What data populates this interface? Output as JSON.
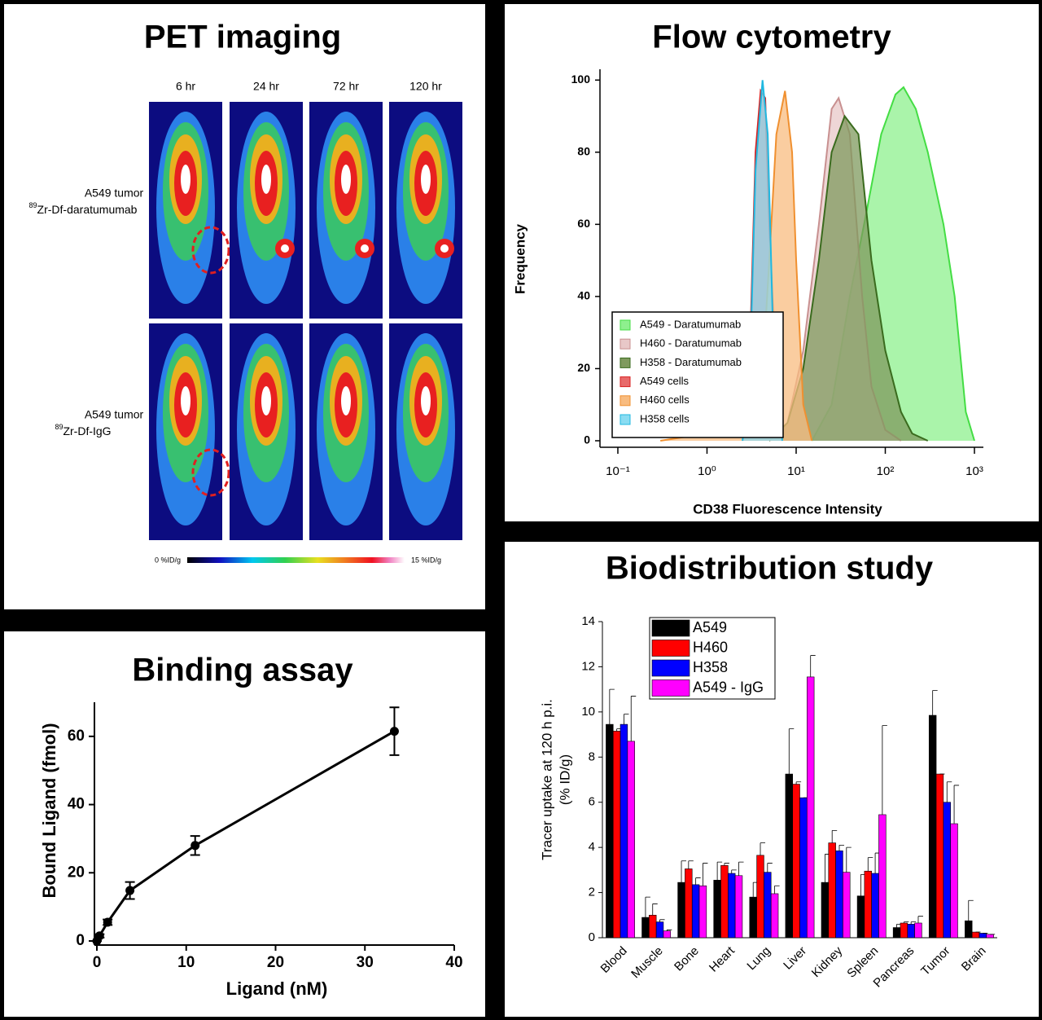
{
  "pet_imaging": {
    "title": "PET imaging",
    "timepoints": [
      "6 hr",
      "24 hr",
      "72 hr",
      "120 hr"
    ],
    "rows": [
      {
        "tumor": "A549 tumor",
        "isotope": "89",
        "tracer": "Zr-Df-daratumumab"
      },
      {
        "tumor": "A549 tumor",
        "isotope": "89",
        "tracer": "Zr-Df-IgG"
      }
    ],
    "colorbar": {
      "min_label": "0 %ID/g",
      "max_label": "15 %ID/g"
    }
  },
  "chart_data": [
    {
      "type": "area",
      "title": "Flow cytometry",
      "x_label": "CD38 Fluorescence Intensity",
      "y_label": "Frequency",
      "xscale": "log",
      "xlim": [
        0.063,
        1260
      ],
      "ylim": [
        0,
        103
      ],
      "xticks": [
        {
          "value": 0.1,
          "label": "10⁻¹"
        },
        {
          "value": 1,
          "label": "10⁰"
        },
        {
          "value": 10,
          "label": "10¹"
        },
        {
          "value": 100,
          "label": "10²"
        },
        {
          "value": 1000,
          "label": "10³"
        }
      ],
      "yticks": [
        0,
        20,
        40,
        60,
        80,
        100
      ],
      "legend": "lower left",
      "series": [
        {
          "name": "A549 - Daratumumab",
          "color": "#44dd44",
          "fill": "#8ef08e",
          "x": [
            15,
            25,
            40,
            60,
            90,
            130,
            160,
            220,
            300,
            450,
            600,
            800,
            1000
          ],
          "values": [
            0,
            10,
            40,
            62,
            85,
            96,
            98,
            92,
            80,
            60,
            40,
            8,
            0
          ]
        },
        {
          "name": "H460 - Daratumumab",
          "color": "#c89090",
          "fill": "#e8c8c8",
          "x": [
            5,
            8,
            12,
            18,
            25,
            30,
            40,
            55,
            70,
            100,
            150
          ],
          "values": [
            0,
            5,
            25,
            60,
            92,
            95,
            85,
            40,
            15,
            3,
            0
          ]
        },
        {
          "name": "H358 - Daratumumab",
          "color": "#3a6b1e",
          "fill": "#7f9a5e",
          "x": [
            5,
            8,
            12,
            18,
            25,
            35,
            50,
            70,
            100,
            150,
            200,
            300
          ],
          "values": [
            0,
            5,
            20,
            50,
            80,
            90,
            85,
            50,
            25,
            8,
            2,
            0
          ]
        },
        {
          "name": "A549 cells",
          "color": "#d82020",
          "fill": "#e86a6a",
          "x": [
            2.5,
            3,
            3.5,
            4,
            4.5,
            5,
            6,
            7
          ],
          "values": [
            0,
            20,
            80,
            97,
            95,
            60,
            15,
            0
          ]
        },
        {
          "name": "H460 cells",
          "color": "#f09030",
          "fill": "#f8bc80",
          "x": [
            0.3,
            1,
            3,
            4,
            5,
            6,
            7.5,
            9,
            10,
            12,
            15
          ],
          "values": [
            0,
            2,
            3,
            10,
            50,
            85,
            97,
            80,
            50,
            10,
            0
          ]
        },
        {
          "name": "H358 cells",
          "color": "#20b8e0",
          "fill": "#8adcf2",
          "x": [
            2.5,
            3,
            3.5,
            4.2,
            4.8,
            5.5,
            7
          ],
          "values": [
            0,
            15,
            75,
            100,
            85,
            30,
            0
          ]
        }
      ]
    },
    {
      "type": "line",
      "title": "Binding assay",
      "x_label": "Ligand (nM)",
      "y_label": "Bound Ligand (fmol)",
      "color": "#000000",
      "x": [
        0,
        0.3,
        1.2,
        3.7,
        11,
        33.3
      ],
      "values": [
        0,
        1.5,
        5.5,
        14.8,
        28,
        61.5
      ],
      "errors": [
        0,
        0.5,
        0.8,
        2.5,
        2.8,
        7
      ],
      "xlim": [
        0,
        40
      ],
      "ylim": [
        0,
        70
      ],
      "xticks": [
        0,
        10,
        20,
        30,
        40
      ],
      "yticks": [
        0,
        20,
        40,
        60
      ]
    },
    {
      "type": "bar",
      "title": "Biodistribution study",
      "y_label": [
        "Tracer uptake at 120 h p.i.",
        "(% ID/g)"
      ],
      "categories": [
        "Blood",
        "Muscle",
        "Bone",
        "Heart",
        "Lung",
        "Liver",
        "Kidney",
        "Spleen",
        "Pancreas",
        "Tumor",
        "Brain"
      ],
      "ylim": [
        0,
        14
      ],
      "yticks": [
        0,
        2,
        4,
        6,
        8,
        10,
        12,
        14
      ],
      "legend": "upper left",
      "series": [
        {
          "name": "A549",
          "color": "#000000",
          "values": [
            9.45,
            0.9,
            2.45,
            2.55,
            1.8,
            7.25,
            2.45,
            1.85,
            0.45,
            9.85,
            0.75
          ],
          "errors": [
            1.55,
            0.9,
            0.95,
            0.8,
            0.65,
            2.0,
            1.25,
            0.95,
            0.15,
            1.1,
            0.9
          ]
        },
        {
          "name": "H460",
          "color": "#ff0000",
          "values": [
            9.15,
            1.0,
            3.05,
            3.2,
            3.65,
            6.8,
            4.2,
            2.95,
            0.65,
            7.25,
            0.25
          ],
          "errors": [
            0.1,
            0.5,
            0.35,
            0.1,
            0.55,
            0.1,
            0.55,
            0.6,
            0.05,
            0,
            0
          ]
        },
        {
          "name": "H358",
          "color": "#0000ff",
          "values": [
            9.45,
            0.7,
            2.35,
            2.85,
            2.9,
            6.2,
            3.85,
            2.85,
            0.6,
            6.0,
            0.2
          ],
          "errors": [
            0.45,
            0.1,
            0.3,
            0.15,
            0.4,
            0,
            0.25,
            0.9,
            0.1,
            0.9,
            0
          ]
        },
        {
          "name": "A549 - IgG",
          "color": "#ff00ff",
          "values": [
            8.7,
            0.3,
            2.3,
            2.75,
            1.95,
            11.55,
            2.9,
            5.45,
            0.65,
            5.05,
            0.15
          ],
          "errors": [
            2.0,
            0.05,
            1.0,
            0.6,
            0.35,
            0.95,
            1.1,
            3.95,
            0.3,
            1.7,
            0
          ]
        }
      ]
    }
  ]
}
